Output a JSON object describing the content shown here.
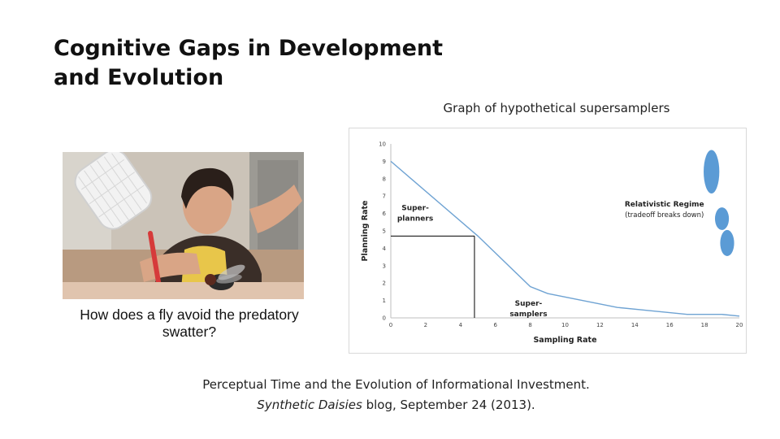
{
  "slide": {
    "title_line1": "Cognitive Gaps in Development",
    "title_line2": "and Evolution",
    "photo_caption_line1": "How does a fly avoid the predatory",
    "photo_caption_line2": "swatter?",
    "citation_line1": "Perceptual Time and the Evolution of Informational Investment.",
    "citation_blog": "Synthetic Daisies",
    "citation_rest": " blog, September 24 (2013)."
  },
  "chart_data": {
    "type": "line",
    "title": "Graph of hypothetical supersamplers",
    "xlabel": "Sampling Rate",
    "ylabel": "Planning Rate",
    "xlim": [
      0,
      20
    ],
    "ylim": [
      0,
      10
    ],
    "xticks": [
      0,
      2,
      4,
      6,
      8,
      10,
      12,
      14,
      16,
      18,
      20
    ],
    "yticks": [
      0,
      1,
      2,
      3,
      4,
      5,
      6,
      7,
      8,
      9,
      10
    ],
    "grid": false,
    "series": [
      {
        "color": "#6fa3d3",
        "x": [
          0,
          5,
          8,
          9,
          13,
          17,
          19,
          20
        ],
        "y": [
          9,
          4.7,
          1.8,
          1.4,
          0.6,
          0.2,
          0.2,
          0.1
        ]
      }
    ],
    "reference_point": {
      "x": 4.8,
      "y": 4.7
    },
    "annotations": [
      {
        "id": "super-planners",
        "lines": [
          "Super-",
          "planners"
        ],
        "x": 1.4,
        "y": 6.2
      },
      {
        "id": "super-samplers",
        "lines": [
          "Super-",
          "samplers"
        ],
        "x": 7.9,
        "y": 0.7
      },
      {
        "id": "relativistic-regime",
        "lines": [
          "Relativistic Regime",
          "(tradeoff breaks down)"
        ],
        "x": 15.7,
        "y": 6.4
      }
    ],
    "ellipses": [
      {
        "x": 18.4,
        "y": 8.4,
        "rx": 0.45,
        "ry": 1.25
      },
      {
        "x": 19.0,
        "y": 5.7,
        "rx": 0.4,
        "ry": 0.65
      },
      {
        "x": 19.3,
        "y": 4.3,
        "rx": 0.4,
        "ry": 0.75
      }
    ],
    "ellipse_color": "#5b9bd5",
    "axis_color": "#bfbfbf",
    "reference_color": "#000000"
  }
}
